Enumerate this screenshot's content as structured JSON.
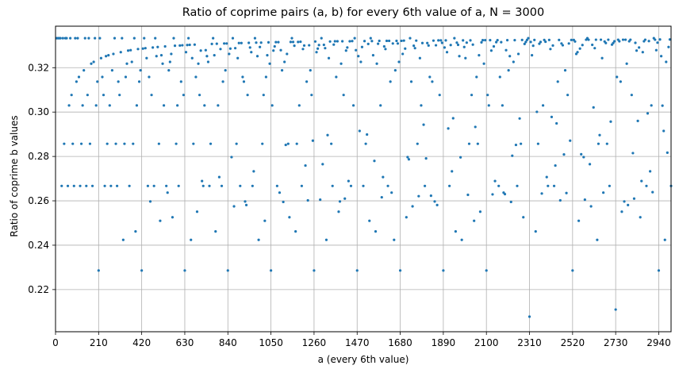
{
  "chart_data": {
    "type": "scatter",
    "title": "Ratio of coprime pairs (a, b) for every 6th value of a, N = 3000",
    "xlabel": "a (every 6th value)",
    "ylabel": "Ratio of coprime b values",
    "xlim": [
      0,
      3000
    ],
    "ylim": [
      0.201,
      0.3387
    ],
    "xticks": [
      0,
      210,
      420,
      630,
      840,
      1050,
      1260,
      1470,
      1680,
      1890,
      2100,
      2310,
      2520,
      2730,
      2940
    ],
    "yticks": [
      0.22,
      0.24,
      0.26,
      0.28,
      0.3,
      0.32
    ],
    "ytick_labels": [
      "0.22",
      "0.24",
      "0.26",
      "0.28",
      "0.30",
      "0.32"
    ],
    "grid": true,
    "legend": null,
    "marker_color": "#1f77b4",
    "x_start": 6,
    "x_step": 6,
    "x_count": 500,
    "series": [
      {
        "name": "ratio",
        "values": [
          0.3333,
          0.3333,
          0.3333,
          0.3333,
          0.2667,
          0.3333,
          0.2857,
          0.3333,
          0.3333,
          0.2667,
          0.303,
          0.3333,
          0.3077,
          0.2857,
          0.2667,
          0.3333,
          0.3137,
          0.3333,
          0.3158,
          0.2667,
          0.2857,
          0.303,
          0.3188,
          0.3333,
          0.2667,
          0.3077,
          0.3333,
          0.2857,
          0.3218,
          0.2667,
          0.3226,
          0.3333,
          0.303,
          0.3137,
          0.2286,
          0.3333,
          0.3243,
          0.3158,
          0.3077,
          0.2667,
          0.3252,
          0.2857,
          0.3256,
          0.303,
          0.2667,
          0.3188,
          0.3262,
          0.3333,
          0.2857,
          0.2667,
          0.3137,
          0.3077,
          0.327,
          0.3333,
          0.2424,
          0.2857,
          0.3158,
          0.3218,
          0.3277,
          0.2667,
          0.3279,
          0.3226,
          0.2857,
          0.3333,
          0.2462,
          0.303,
          0.3284,
          0.3137,
          0.3188,
          0.2286,
          0.3286,
          0.3333,
          0.3288,
          0.3243,
          0.2667,
          0.3158,
          0.2597,
          0.3077,
          0.3291,
          0.2667,
          0.3333,
          0.3252,
          0.3293,
          0.2857,
          0.251,
          0.3256,
          0.3218,
          0.303,
          0.3296,
          0.2667,
          0.2637,
          0.3188,
          0.3226,
          0.3262,
          0.2526,
          0.3333,
          0.3299,
          0.2857,
          0.303,
          0.2667,
          0.33,
          0.3137,
          0.3301,
          0.3077,
          0.2286,
          0.327,
          0.3302,
          0.3333,
          0.3303,
          0.2424,
          0.3243,
          0.2857,
          0.3304,
          0.3158,
          0.2551,
          0.3218,
          0.3077,
          0.3277,
          0.2689,
          0.2667,
          0.303,
          0.3279,
          0.3252,
          0.3226,
          0.2667,
          0.2857,
          0.3307,
          0.3333,
          0.3256,
          0.2462,
          0.3308,
          0.303,
          0.2707,
          0.3284,
          0.2667,
          0.3137,
          0.3309,
          0.3188,
          0.3309,
          0.2286,
          0.3262,
          0.3286,
          0.2797,
          0.3333,
          0.2575,
          0.3288,
          0.2857,
          0.3243,
          0.3311,
          0.2667,
          0.3311,
          0.3158,
          0.3137,
          0.2597,
          0.2581,
          0.3077,
          0.3312,
          0.3291,
          0.327,
          0.2667,
          0.2733,
          0.3333,
          0.3313,
          0.3252,
          0.2424,
          0.3293,
          0.3313,
          0.2857,
          0.3077,
          0.251,
          0.3158,
          0.3256,
          0.3314,
          0.3218,
          0.2286,
          0.303,
          0.3277,
          0.3296,
          0.3315,
          0.2667,
          0.3315,
          0.2637,
          0.3279,
          0.3188,
          0.2595,
          0.3226,
          0.2852,
          0.3262,
          0.2857,
          0.2526,
          0.3316,
          0.3333,
          0.3316,
          0.3299,
          0.2462,
          0.2857,
          0.3316,
          0.303,
          0.3317,
          0.2667,
          0.3284,
          0.33,
          0.2759,
          0.3137,
          0.2602,
          0.3301,
          0.3188,
          0.3077,
          0.2871,
          0.2286,
          0.3318,
          0.327,
          0.3286,
          0.3302,
          0.2605,
          0.3333,
          0.2765,
          0.3303,
          0.3288,
          0.2424,
          0.2896,
          0.3243,
          0.3318,
          0.2857,
          0.2667,
          0.3304,
          0.3319,
          0.3158,
          0.3319,
          0.2551,
          0.2597,
          0.3218,
          0.3319,
          0.3077,
          0.261,
          0.3277,
          0.3291,
          0.2689,
          0.3319,
          0.2667,
          0.332,
          0.303,
          0.3333,
          0.3279,
          0.2286,
          0.3252,
          0.2915,
          0.3226,
          0.3293,
          0.2667,
          0.332,
          0.2857,
          0.2899,
          0.3307,
          0.251,
          0.3333,
          0.332,
          0.3256,
          0.278,
          0.2462,
          0.3218,
          0.3308,
          0.3321,
          0.303,
          0.2616,
          0.2707,
          0.3296,
          0.3284,
          0.3321,
          0.2667,
          0.3321,
          0.3137,
          0.2637,
          0.3309,
          0.2424,
          0.3188,
          0.3321,
          0.3309,
          0.3226,
          0.2286,
          0.3321,
          0.3262,
          0.3322,
          0.3286,
          0.2526,
          0.2797,
          0.2787,
          0.3333,
          0.3137,
          0.2575,
          0.3299,
          0.3288,
          0.3322,
          0.2857,
          0.2621,
          0.3243,
          0.303,
          0.3311,
          0.2943,
          0.2667,
          0.2791,
          0.3311,
          0.33,
          0.3158,
          0.2623,
          0.3137,
          0.3322,
          0.2597,
          0.3301,
          0.2581,
          0.3323,
          0.3077,
          0.3323,
          0.3312,
          0.2286,
          0.3291,
          0.3323,
          0.327,
          0.2926,
          0.2667,
          0.3302,
          0.2733,
          0.2972,
          0.3333,
          0.2462,
          0.3313,
          0.3303,
          0.3252,
          0.2796,
          0.2424,
          0.3323,
          0.3293,
          0.3243,
          0.3313,
          0.2627,
          0.2857,
          0.3323,
          0.3077,
          0.3304,
          0.251,
          0.2933,
          0.3158,
          0.2857,
          0.3256,
          0.2551,
          0.3314,
          0.3324,
          0.3218,
          0.3324,
          0.2286,
          0.3077,
          0.303,
          0.3324,
          0.3277,
          0.2629,
          0.3296,
          0.2689,
          0.3315,
          0.3324,
          0.2667,
          0.3158,
          0.3315,
          0.303,
          0.2637,
          0.263,
          0.3279,
          0.3324,
          0.3188,
          0.3252,
          0.2595,
          0.2803,
          0.3226,
          0.3324,
          0.2852,
          0.2667,
          0.3262,
          0.2971,
          0.2857,
          0.3325,
          0.2526,
          0.3307,
          0.3316,
          0.3325,
          0.3333,
          0.2078,
          0.3316,
          0.3256,
          0.3299,
          0.3325,
          0.2462,
          0.3001,
          0.2857,
          0.3308,
          0.3316,
          0.2633,
          0.303,
          0.3325,
          0.3317,
          0.2707,
          0.2667,
          0.3325,
          0.3284,
          0.2978,
          0.33,
          0.2667,
          0.2759,
          0.2949,
          0.3137,
          0.3325,
          0.2602,
          0.3309,
          0.3301,
          0.2809,
          0.3188,
          0.2635,
          0.3077,
          0.3309,
          0.2871,
          0.3325,
          0.2286,
          0.3325,
          0.3318,
          0.3262,
          0.327,
          0.251,
          0.3286,
          0.281,
          0.3302,
          0.2797,
          0.2605,
          0.3326,
          0.3333,
          0.3326,
          0.2765,
          0.2575,
          0.3303,
          0.3021,
          0.3288,
          0.3326,
          0.2424,
          0.2857,
          0.2896,
          0.3326,
          0.3243,
          0.2637,
          0.3318,
          0.3311,
          0.2857,
          0.3326,
          0.2667,
          0.2957,
          0.3304,
          0.3311,
          0.3319,
          0.211,
          0.3158,
          0.3326,
          0.3319,
          0.3137,
          0.2551,
          0.3326,
          0.2597,
          0.3326,
          0.3218,
          0.2581,
          0.3319,
          0.3326,
          0.3077,
          0.2815,
          0.261,
          0.3312,
          0.3277,
          0.296,
          0.3291,
          0.2526,
          0.2689,
          0.327,
          0.3319,
          0.3326,
          0.2667,
          0.2994,
          0.332,
          0.2733,
          0.303,
          0.2639,
          0.3333,
          0.3326,
          0.3279,
          0.3313,
          0.2286,
          0.3327,
          0.3252,
          0.3029,
          0.2915,
          0.2424,
          0.3226,
          0.2817,
          0.3293,
          0.3327,
          0.2667
        ]
      }
    ]
  }
}
